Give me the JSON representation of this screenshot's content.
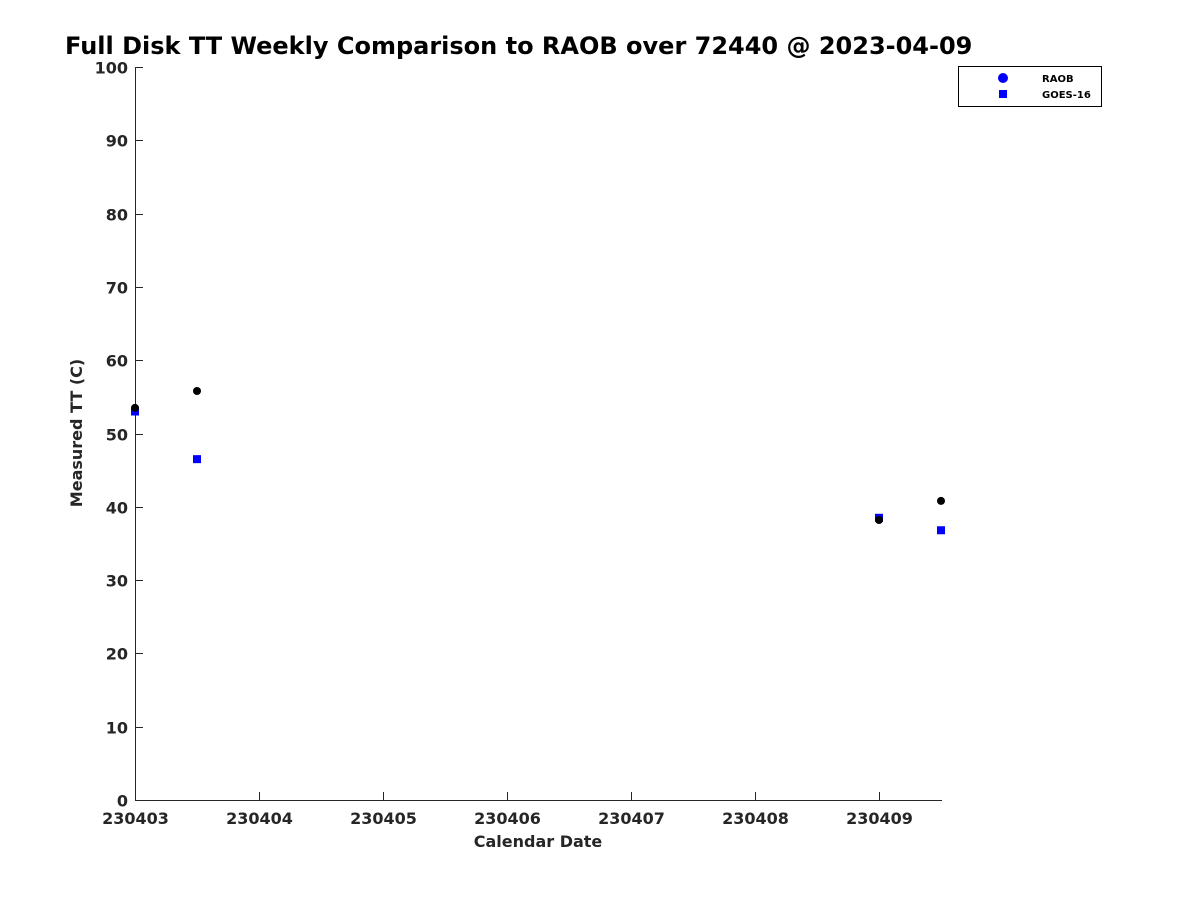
{
  "chart_data": {
    "type": "scatter",
    "title": "Full Disk TT Weekly Comparison to RAOB over 72440 @ 2023-04-09",
    "xlabel": "Calendar Date",
    "ylabel": "Measured TT (C)",
    "x_ticks": [
      "230403",
      "230404",
      "230405",
      "230406",
      "230407",
      "230408",
      "230409"
    ],
    "y_ticks": [
      "0",
      "10",
      "20",
      "30",
      "40",
      "50",
      "60",
      "70",
      "80",
      "90",
      "100"
    ],
    "ylim": [
      0,
      100
    ],
    "xlim": [
      "230403 00Z",
      "230409 12Z"
    ],
    "grid": false,
    "legend_position": "top-right",
    "series": [
      {
        "name": "RAOB",
        "marker": "circle",
        "legend_color": "#0000ff",
        "point_color": "#000000",
        "points": [
          {
            "x": "230403 00Z",
            "y": 53.5
          },
          {
            "x": "230403 12Z",
            "y": 55.8
          },
          {
            "x": "230409 00Z",
            "y": 38.2
          },
          {
            "x": "230409 12Z",
            "y": 40.8
          }
        ]
      },
      {
        "name": "GOES-16",
        "marker": "square",
        "legend_color": "#0000ff",
        "point_color": "#0000ff",
        "points": [
          {
            "x": "230403 00Z",
            "y": 53.0
          },
          {
            "x": "230403 12Z",
            "y": 46.5
          },
          {
            "x": "230409 00Z",
            "y": 38.5
          },
          {
            "x": "230409 12Z",
            "y": 36.8
          }
        ]
      }
    ]
  }
}
